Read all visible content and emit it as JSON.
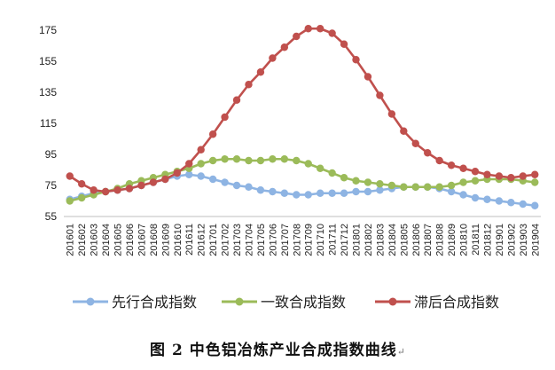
{
  "caption": "图 2 中色铝冶炼产业合成指数曲线",
  "caption_mark": "↵",
  "chart_data": {
    "type": "line",
    "title": "",
    "xlabel": "",
    "ylabel": "",
    "ylim": [
      55,
      175
    ],
    "yticks": [
      55,
      75,
      95,
      115,
      135,
      155,
      175
    ],
    "grid": false,
    "legend_position": "bottom",
    "x": [
      "201601",
      "201602",
      "201603",
      "201604",
      "201605",
      "201606",
      "201607",
      "201608",
      "201609",
      "201610",
      "201611",
      "201612",
      "201701",
      "201702",
      "201703",
      "201704",
      "201705",
      "201706",
      "201707",
      "201708",
      "201709",
      "201710",
      "201711",
      "201712",
      "201801",
      "201802",
      "201803",
      "201804",
      "201805",
      "201806",
      "201807",
      "201808",
      "201809",
      "201810",
      "201811",
      "201812",
      "201901",
      "201902",
      "201903",
      "201904"
    ],
    "series": [
      {
        "name": "先行合成指数",
        "color": "#8EB4E3",
        "values": [
          66,
          68,
          70,
          71,
          72,
          73,
          75,
          77,
          79,
          81,
          82,
          81,
          79,
          77,
          75,
          74,
          72,
          71,
          70,
          69,
          69,
          70,
          70,
          70,
          71,
          71,
          72,
          73,
          74,
          74,
          74,
          73,
          71,
          69,
          67,
          66,
          65,
          64,
          63,
          62
        ]
      },
      {
        "name": "一致合成指数",
        "color": "#9BBB59",
        "values": [
          65,
          67,
          69,
          71,
          73,
          76,
          78,
          80,
          82,
          84,
          86,
          89,
          91,
          92,
          92,
          91,
          91,
          92,
          92,
          91,
          89,
          86,
          83,
          80,
          78,
          77,
          76,
          75,
          74,
          74,
          74,
          74,
          75,
          77,
          78,
          79,
          79,
          79,
          78,
          77
        ]
      },
      {
        "name": "滞后合成指数",
        "color": "#C0504D",
        "values": [
          81,
          76,
          72,
          71,
          72,
          73,
          75,
          77,
          79,
          83,
          89,
          98,
          108,
          119,
          130,
          140,
          148,
          157,
          164,
          171,
          176,
          176,
          173,
          166,
          156,
          145,
          133,
          121,
          110,
          102,
          96,
          91,
          88,
          86,
          84,
          82,
          81,
          80,
          81,
          82
        ]
      }
    ]
  }
}
